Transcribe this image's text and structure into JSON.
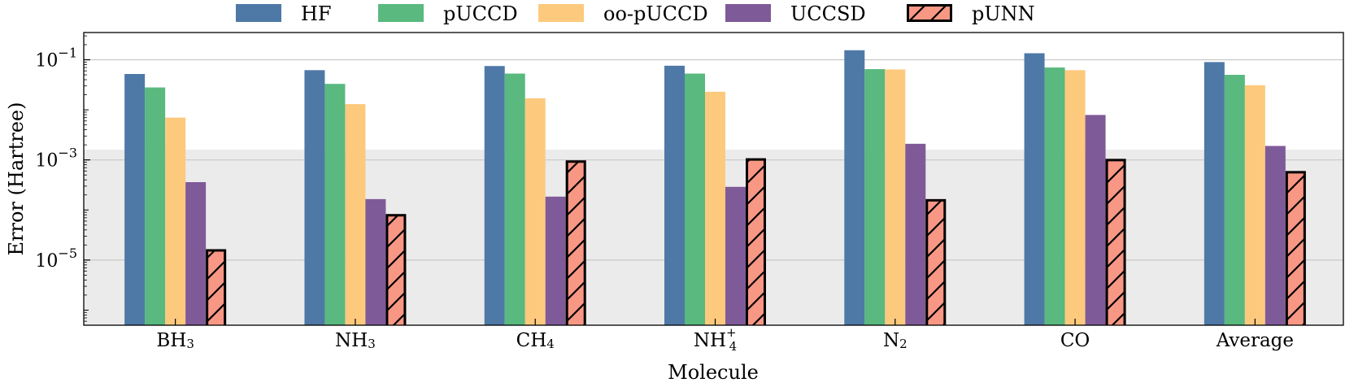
{
  "chart_data": {
    "type": "bar",
    "scale": "log",
    "xlabel": "Molecule",
    "ylabel": "Error (Hartree)",
    "ylim": [
      5e-07,
      0.35
    ],
    "grid": true,
    "legend_position": "top",
    "chemical_accuracy_threshold": 0.0016,
    "y_ticks": [
      {
        "value": 0.1,
        "base": "10",
        "exp": "−1"
      },
      {
        "value": 0.001,
        "base": "10",
        "exp": "−3"
      },
      {
        "value": 1e-05,
        "base": "10",
        "exp": "−5"
      }
    ],
    "categories": [
      {
        "base": "BH",
        "sub": "3",
        "sup": ""
      },
      {
        "base": "NH",
        "sub": "3",
        "sup": ""
      },
      {
        "base": "CH",
        "sub": "4",
        "sup": ""
      },
      {
        "base": "NH",
        "sub": "4",
        "sup": "+"
      },
      {
        "base": "N",
        "sub": "2",
        "sup": ""
      },
      {
        "base": "CO",
        "sub": "",
        "sup": ""
      },
      {
        "base": "Average",
        "sub": "",
        "sup": ""
      }
    ],
    "series": [
      {
        "name": "HF",
        "color": "#4e79a7",
        "hatched": false,
        "values": [
          0.052,
          0.062,
          0.075,
          0.076,
          0.155,
          0.135,
          0.09
        ]
      },
      {
        "name": "pUCCD",
        "color": "#59b97e",
        "hatched": false,
        "values": [
          0.028,
          0.033,
          0.053,
          0.053,
          0.065,
          0.07,
          0.05
        ]
      },
      {
        "name": "oo-pUCCD",
        "color": "#fdc97d",
        "hatched": false,
        "values": [
          0.007,
          0.013,
          0.017,
          0.023,
          0.064,
          0.062,
          0.031
        ]
      },
      {
        "name": "UCCSD",
        "color": "#7f5a98",
        "hatched": false,
        "values": [
          0.00036,
          0.000165,
          0.000185,
          0.00029,
          0.0021,
          0.0079,
          0.0019
        ]
      },
      {
        "name": "pUNN",
        "color": "#f79784",
        "hatched": true,
        "values": [
          1.65e-05,
          8.3e-05,
          0.00098,
          0.00108,
          0.000165,
          0.00105,
          0.0006
        ]
      }
    ]
  }
}
